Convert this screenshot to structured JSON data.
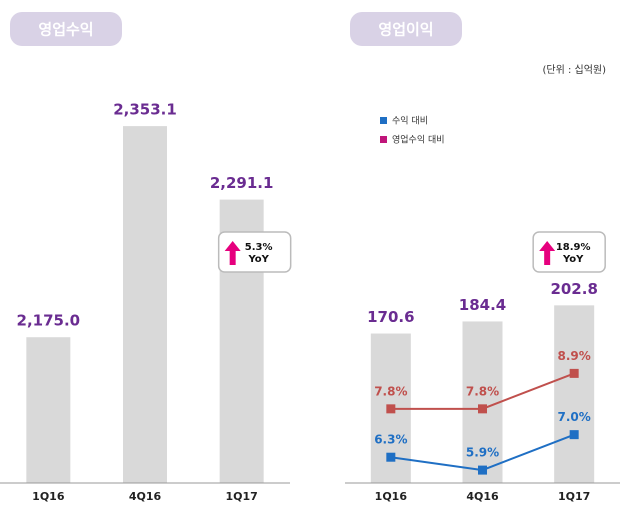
{
  "chart_data": [
    {
      "type": "bar",
      "title": "영업수익",
      "categories": [
        "1Q16",
        "4Q16",
        "1Q17"
      ],
      "values": [
        2175.0,
        2353.1,
        2291.1
      ],
      "value_labels": [
        "2,175.0",
        "2,353.1",
        "2,291.1"
      ],
      "color": "#d9d9d9",
      "ylim": [
        2052,
        2392
      ],
      "annotation": {
        "value": "5.3%",
        "label": "YoY"
      }
    },
    {
      "type": "bar_line",
      "title": "영업이익",
      "unit_note": "(단위 : 십억원)",
      "categories": [
        "1Q16",
        "4Q16",
        "1Q17"
      ],
      "values": [
        170.6,
        184.4,
        202.8
      ],
      "color": "#d9d9d9",
      "ylim": [
        0,
        460
      ],
      "y2lim": [
        5.5,
        18
      ],
      "series": [
        {
          "name": "수익 대비",
          "color": "#1f6fc4",
          "legend_color": "#1f6fc4",
          "axis": "y2",
          "values": [
            6.3,
            5.9,
            7.0
          ],
          "value_labels": [
            "6.3%",
            "5.9%",
            "7.0%"
          ]
        },
        {
          "name": "영업수익 대비",
          "color": "#c0504d",
          "legend_color": "#c0157a",
          "axis": "y2",
          "values": [
            7.8,
            7.8,
            8.9
          ],
          "value_labels": [
            "7.8%",
            "7.8%",
            "8.9%"
          ]
        }
      ],
      "annotation": {
        "value": "18.9%",
        "label": "YoY"
      }
    }
  ]
}
